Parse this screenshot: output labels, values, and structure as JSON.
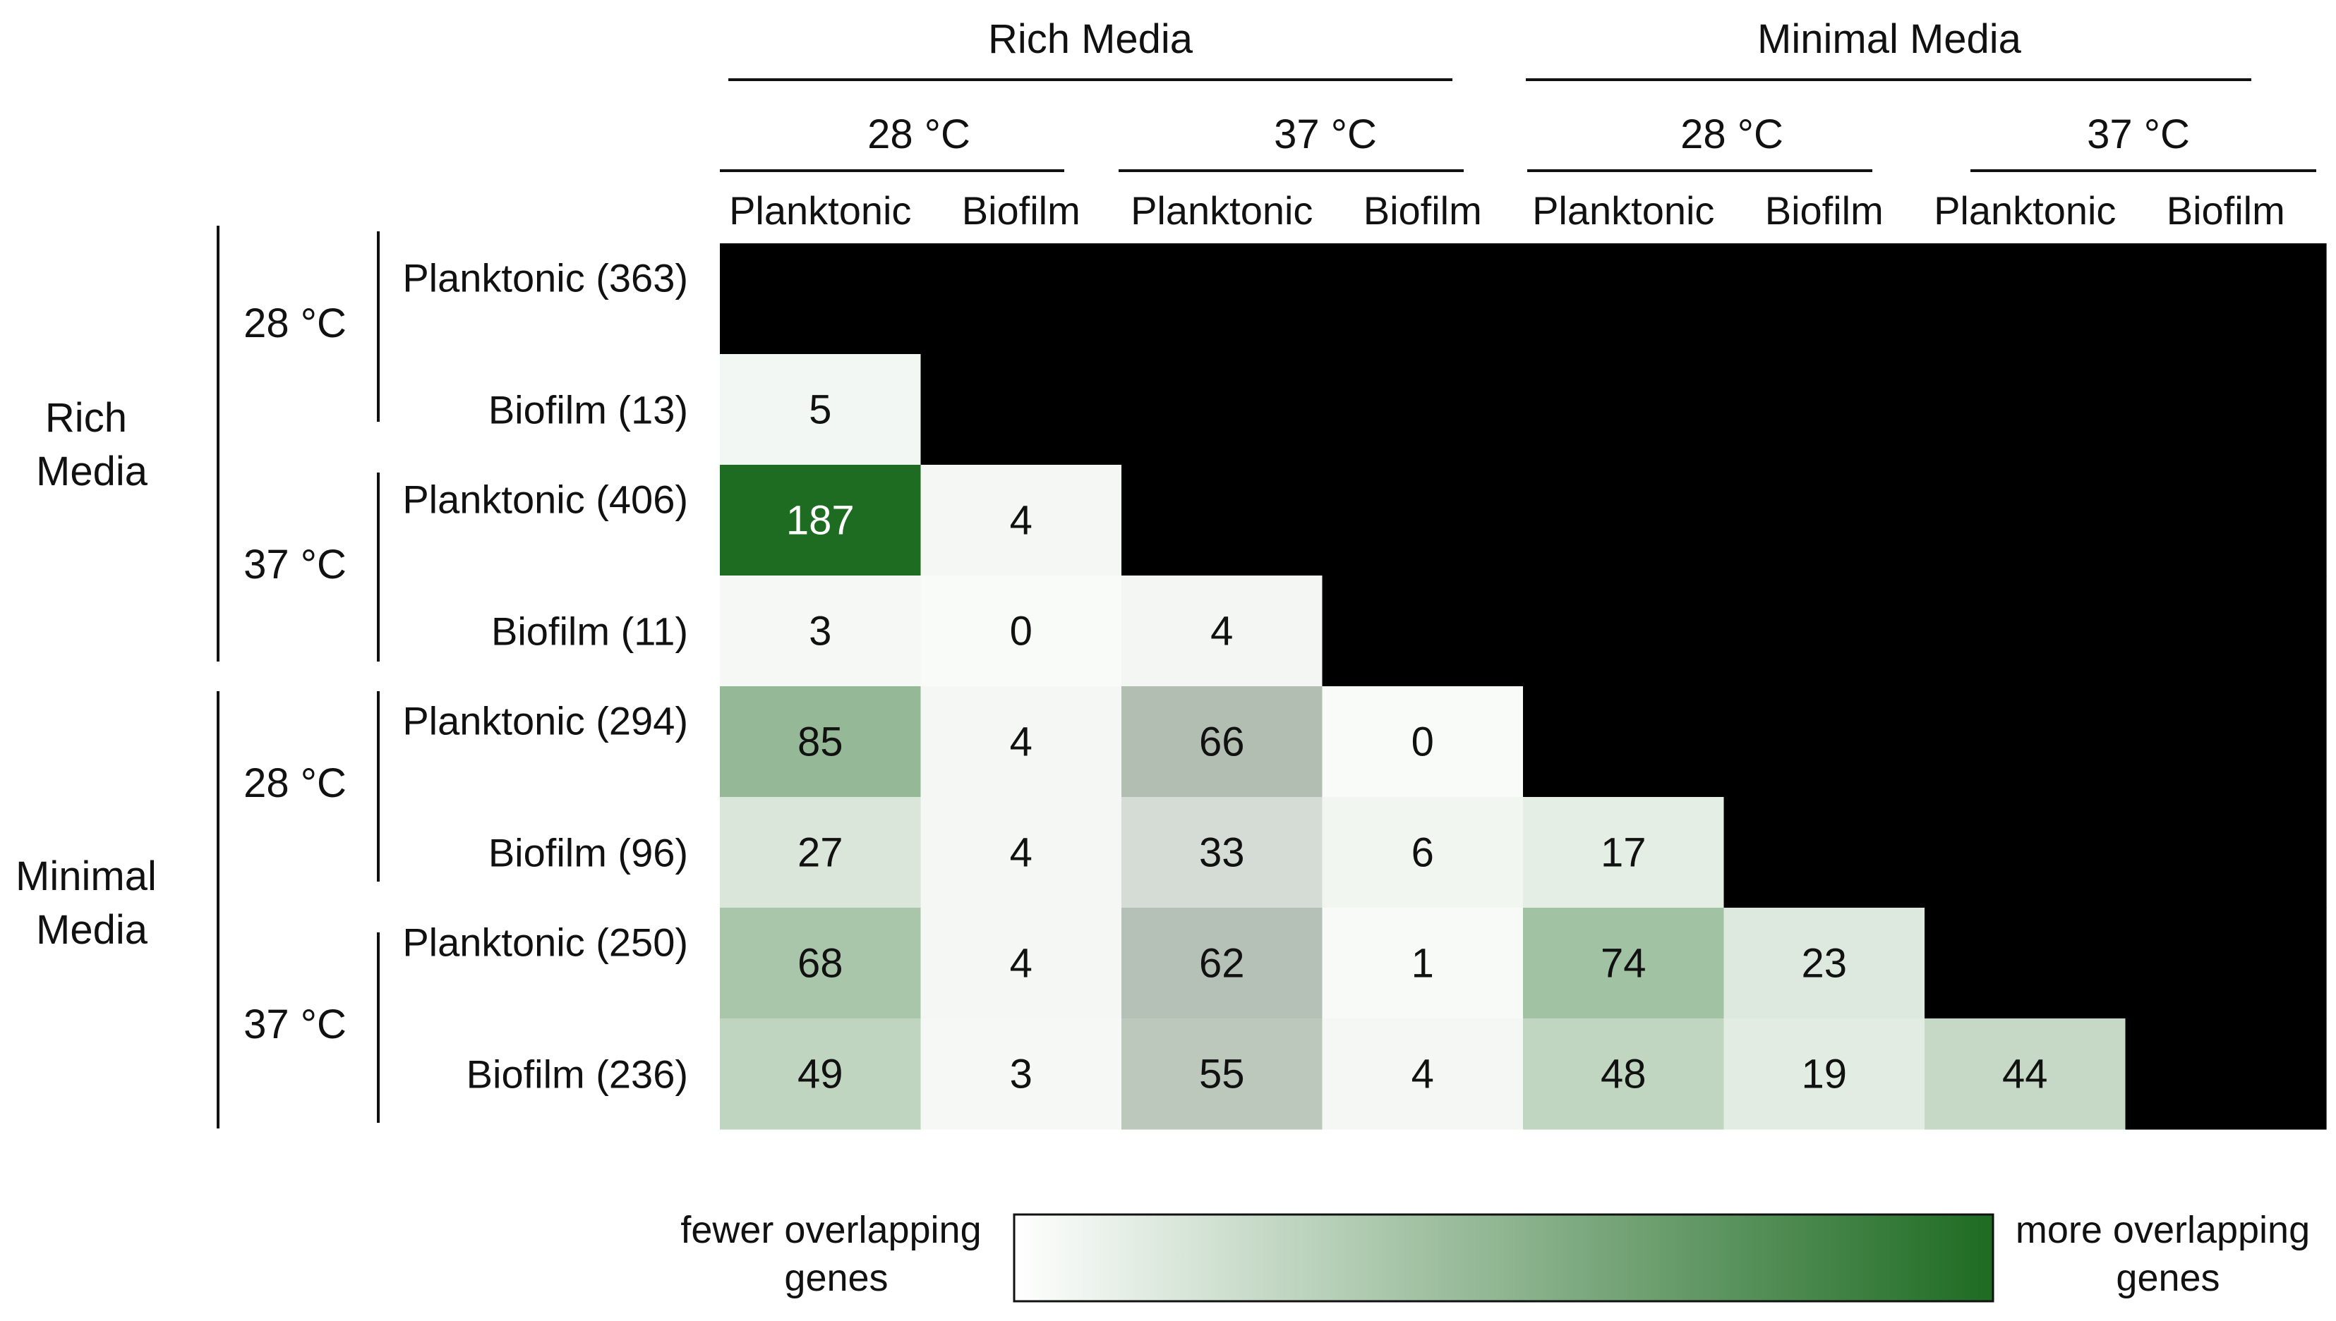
{
  "chart_data": {
    "type": "heatmap",
    "groups": {
      "media": [
        "Rich Media",
        "Minimal Media"
      ],
      "temperature": [
        "28 °C",
        "37 °C"
      ],
      "state": [
        "Planktonic",
        "Biofilm"
      ]
    },
    "column_labels": [
      "Planktonic",
      "Biofilm",
      "Planktonic",
      "Biofilm",
      "Planktonic",
      "Biofilm",
      "Planktonic",
      "Biofilm"
    ],
    "row_labels": [
      "Planktonic (363)",
      "Biofilm (13)",
      "Planktonic (406)",
      "Biofilm (11)",
      "Planktonic (294)",
      "Biofilm (96)",
      "Planktonic (250)",
      "Biofilm (236)"
    ],
    "values": [
      [
        null,
        null,
        null,
        null,
        null,
        null,
        null,
        null
      ],
      [
        5,
        null,
        null,
        null,
        null,
        null,
        null,
        null
      ],
      [
        187,
        4,
        null,
        null,
        null,
        null,
        null,
        null
      ],
      [
        3,
        0,
        4,
        null,
        null,
        null,
        null,
        null
      ],
      [
        85,
        4,
        66,
        0,
        null,
        null,
        null,
        null
      ],
      [
        27,
        4,
        33,
        6,
        17,
        null,
        null,
        null
      ],
      [
        68,
        4,
        62,
        1,
        74,
        23,
        null,
        null
      ],
      [
        49,
        3,
        55,
        4,
        48,
        19,
        44,
        null
      ]
    ],
    "grey_tint_columns": [
      2
    ],
    "colors": {
      "low": "#ffffff",
      "high": "#1e6b22",
      "masked": "#000000",
      "text_dark": "#111111",
      "text_light": "#ffffff"
    },
    "scale_max": 187,
    "colorbar": {
      "left_label": [
        "fewer overlapping",
        "genes"
      ],
      "right_label": [
        "more overlapping",
        "genes"
      ]
    }
  }
}
